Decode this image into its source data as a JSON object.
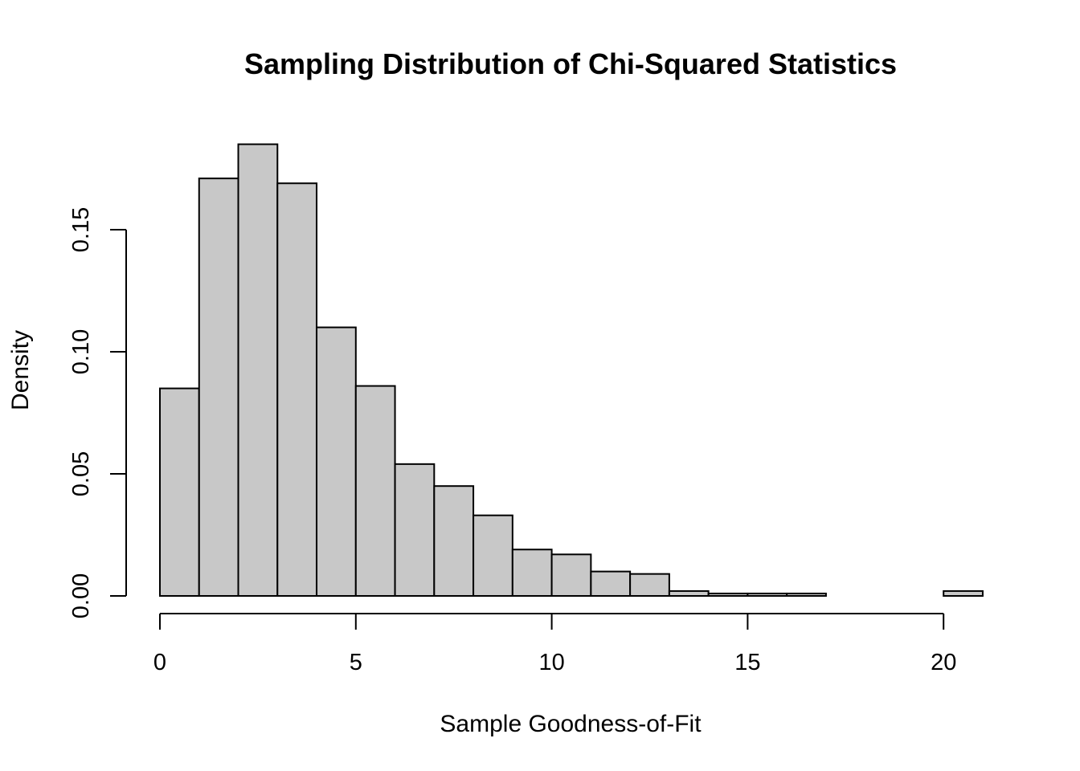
{
  "chart_data": {
    "type": "histogram",
    "title": "Sampling Distribution of Chi-Squared Statistics",
    "xlabel": "Sample Goodness-of-Fit",
    "ylabel": "Density",
    "bin_edges": [
      0,
      1,
      2,
      3,
      4,
      5,
      6,
      7,
      8,
      9,
      10,
      11,
      12,
      13,
      14,
      15,
      16,
      17,
      18,
      19,
      20,
      21
    ],
    "values": [
      0.085,
      0.171,
      0.185,
      0.169,
      0.11,
      0.086,
      0.054,
      0.045,
      0.033,
      0.019,
      0.017,
      0.01,
      0.009,
      0.002,
      0.001,
      0.001,
      0.001,
      0.0,
      0.0,
      0.0,
      0.002
    ],
    "xlim": [
      0,
      21
    ],
    "ylim": [
      0,
      0.185
    ],
    "x_ticks": [
      0,
      5,
      10,
      15,
      20
    ],
    "x_tick_labels": [
      "0",
      "5",
      "10",
      "15",
      "20"
    ],
    "y_ticks": [
      0,
      0.05,
      0.1,
      0.15
    ],
    "y_tick_labels": [
      "0.00",
      "0.05",
      "0.10",
      "0.15"
    ],
    "bar_color": "#c8c8c8",
    "edge_color": "#000000",
    "grid": false,
    "legend": "none"
  }
}
